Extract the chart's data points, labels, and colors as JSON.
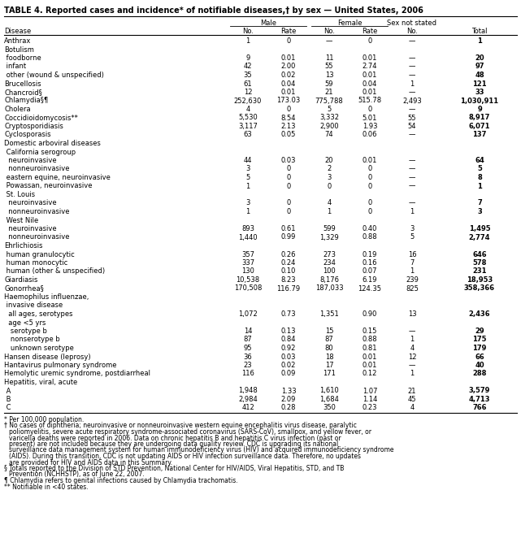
{
  "title": "TABLE 4. Reported cases and incidence* of notifiable diseases,† by sex — United States, 2006",
  "rows": [
    [
      "Anthrax",
      "1",
      "0",
      "—",
      "0",
      "—",
      "1"
    ],
    [
      "Botulism",
      "",
      "",
      "",
      "",
      "",
      ""
    ],
    [
      " foodborne",
      "9",
      "0.01",
      "11",
      "0.01",
      "—",
      "20"
    ],
    [
      " infant",
      "42",
      "2.00",
      "55",
      "2.74",
      "—",
      "97"
    ],
    [
      " other (wound & unspecified)",
      "35",
      "0.02",
      "13",
      "0.01",
      "—",
      "48"
    ],
    [
      "Brucellosis",
      "61",
      "0.04",
      "59",
      "0.04",
      "1",
      "121"
    ],
    [
      "Chancroid§",
      "12",
      "0.01",
      "21",
      "0.01",
      "—",
      "33"
    ],
    [
      "Chlamydia§¶",
      "252,630",
      "173.03",
      "775,788",
      "515.78",
      "2,493",
      "1,030,911"
    ],
    [
      "Cholera",
      "4",
      "0",
      "5",
      "0",
      "—",
      "9"
    ],
    [
      "Coccidioidomycosis**",
      "5,530",
      "8.54",
      "3,332",
      "5.01",
      "55",
      "8,917"
    ],
    [
      "Cryptosporidiasis",
      "3,117",
      "2.13",
      "2,900",
      "1.93",
      "54",
      "6,071"
    ],
    [
      "Cyclosporasis",
      "63",
      "0.05",
      "74",
      "0.06",
      "—",
      "137"
    ],
    [
      "Domestic arboviral diseases",
      "",
      "",
      "",
      "",
      "",
      ""
    ],
    [
      " California serogroup",
      "",
      "",
      "",
      "",
      "",
      ""
    ],
    [
      "  neuroinvasive",
      "44",
      "0.03",
      "20",
      "0.01",
      "—",
      "64"
    ],
    [
      "  nonneuroinvasive",
      "3",
      "0",
      "2",
      "0",
      "—",
      "5"
    ],
    [
      " eastern equine, neuroinvasive",
      "5",
      "0",
      "3",
      "0",
      "—",
      "8"
    ],
    [
      " Powassan, neuroinvasive",
      "1",
      "0",
      "0",
      "0",
      "—",
      "1"
    ],
    [
      " St. Louis",
      "",
      "",
      "",
      "",
      "",
      ""
    ],
    [
      "  neuroinvasive",
      "3",
      "0",
      "4",
      "0",
      "—",
      "7"
    ],
    [
      "  nonneuroinvasive",
      "1",
      "0",
      "1",
      "0",
      "1",
      "3"
    ],
    [
      " West Nile",
      "",
      "",
      "",
      "",
      "",
      ""
    ],
    [
      "  neuroinvasive",
      "893",
      "0.61",
      "599",
      "0.40",
      "3",
      "1,495"
    ],
    [
      "  nonneuroinvasive",
      "1,440",
      "0.99",
      "1,329",
      "0.88",
      "5",
      "2,774"
    ],
    [
      "Ehrlichiosis",
      "",
      "",
      "",
      "",
      "",
      ""
    ],
    [
      " human granulocytic",
      "357",
      "0.26",
      "273",
      "0.19",
      "16",
      "646"
    ],
    [
      " human monocytic",
      "337",
      "0.24",
      "234",
      "0.16",
      "7",
      "578"
    ],
    [
      " human (other & unspecified)",
      "130",
      "0.10",
      "100",
      "0.07",
      "1",
      "231"
    ],
    [
      "Giardiasis",
      "10,538",
      "8.23",
      "8,176",
      "6.19",
      "239",
      "18,953"
    ],
    [
      "Gonorrhea§",
      "170,508",
      "116.79",
      "187,033",
      "124.35",
      "825",
      "358,366"
    ],
    [
      "Haemophilus influenzae,",
      "",
      "",
      "",
      "",
      "",
      ""
    ],
    [
      " invasive disease",
      "",
      "",
      "",
      "",
      "",
      ""
    ],
    [
      "  all ages, serotypes",
      "1,072",
      "0.73",
      "1,351",
      "0.90",
      "13",
      "2,436"
    ],
    [
      "  age <5 yrs",
      "",
      "",
      "",
      "",
      "",
      ""
    ],
    [
      "   serotype b",
      "14",
      "0.13",
      "15",
      "0.15",
      "—",
      "29"
    ],
    [
      "   nonserotype b",
      "87",
      "0.84",
      "87",
      "0.88",
      "1",
      "175"
    ],
    [
      "   unknown serotype",
      "95",
      "0.92",
      "80",
      "0.81",
      "4",
      "179"
    ],
    [
      "Hansen disease (leprosy)",
      "36",
      "0.03",
      "18",
      "0.01",
      "12",
      "66"
    ],
    [
      "Hantavirus pulmonary syndrome",
      "23",
      "0.02",
      "17",
      "0.01",
      "—",
      "40"
    ],
    [
      "Hemolytic uremic syndrome, postdiarrheal",
      "116",
      "0.09",
      "171",
      "0.12",
      "1",
      "288"
    ],
    [
      "Hepatitis, viral, acute",
      "",
      "",
      "",
      "",
      "",
      ""
    ],
    [
      " A",
      "1,948",
      "1.33",
      "1,610",
      "1.07",
      "21",
      "3,579"
    ],
    [
      " B",
      "2,984",
      "2.09",
      "1,684",
      "1.14",
      "45",
      "4,713"
    ],
    [
      " C",
      "412",
      "0.28",
      "350",
      "0.23",
      "4",
      "766"
    ]
  ],
  "footnote_lines": [
    "* Per 100,000 population.",
    "† No cases of diphtheria; neuroinvasive or nonneuroinvasive western equine encephalitis virus disease, paralytic poliomyelitis, severe acute respiratory syndrome-associated coronavirus (SARS-CoV), smallpox, and yellow fever, or varicella deaths were reported in 2006. Data on chronic hepatitis B and hepatitis C virus infection (past or present) are not included because they are undergoing data quality review. CDC is upgrading its national surveillance data management system for human immunodeficiency virus (HIV) and acquired immunodeficiency syndrome (AIDS). During this transition, CDC is not updating AIDS or HIV infection surveillance data. Therefore, no updates are provided for HIV and AIDS data in this Summary.",
    "§ Totals reported to the Division of STD Prevention, National Center for HIV/AIDS, Viral Hepatitis, STD, and TB Prevention (NCHHSTP), as of June 22, 2007.",
    "¶ Chlamydia refers to genital infections caused by Chlamydia trachomatis.",
    "** Notifiable in <40 states."
  ],
  "bg_color": "#ffffff",
  "font_size": 6.0,
  "title_font_size": 7.0,
  "footnote_font_size": 5.5
}
